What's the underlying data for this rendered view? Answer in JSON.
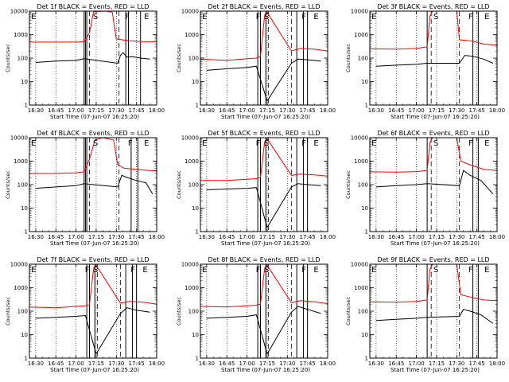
{
  "figure": {
    "x_tick_labels": [
      "16:30",
      "16:45",
      "17:00",
      "17:15",
      "17:30",
      "17:45",
      "18:00"
    ],
    "xlabel": "Start Time (07-Jun-07 16:25:20)",
    "ylabel": "Counts/sec",
    "y_tick_labels": [
      "1",
      "10",
      "100",
      "1000",
      "10000"
    ],
    "colors": {
      "events": "#000000",
      "lld": "#ff0000",
      "axes": "#000000"
    }
  },
  "chart_data": [
    {
      "type": "line",
      "title": "Det 1f BLACK = Events, RED = LLD",
      "x_time_range": [
        "16:25:20",
        "18:00"
      ],
      "ylim": [
        1,
        10000
      ],
      "y_scale": "log",
      "region_labels": [
        {
          "text": "E",
          "time": "16:26"
        },
        {
          "text": "S",
          "time": "17:12"
        },
        {
          "text": "F",
          "time": "17:36"
        },
        {
          "text": "E",
          "time": "17:50"
        }
      ],
      "solid_markers": [
        "17:06",
        "17:07",
        "17:08",
        "17:37",
        "17:39",
        "17:48"
      ],
      "dashed_markers": [
        "17:10",
        "17:32"
      ],
      "dotted_markers": [
        "16:30",
        "16:45",
        "17:00",
        "17:15",
        "17:30",
        "17:45"
      ],
      "series": [
        {
          "color": "#ff0000",
          "times": [
            "16:25:20",
            "16:45",
            "17:00",
            "17:06",
            "17:10",
            "17:13",
            "17:18",
            "17:22",
            "17:27",
            "17:30",
            "17:40",
            "17:50",
            "18:00"
          ],
          "values": [
            480,
            480,
            480,
            500,
            1200,
            9500,
            9800,
            10000,
            9000,
            650,
            550,
            500,
            500
          ]
        },
        {
          "color": "#000000",
          "times": [
            "16:30",
            "16:45",
            "17:00",
            "17:06",
            "17:31",
            "17:33",
            "17:35",
            "17:38",
            "17:42",
            "17:48",
            "17:55"
          ],
          "values": [
            65,
            75,
            80,
            95,
            60,
            130,
            170,
            110,
            115,
            100,
            90
          ]
        }
      ]
    },
    {
      "type": "line",
      "title": "Det 2f BLACK = Events, RED = LLD",
      "x_time_range": [
        "16:25:20",
        "18:00"
      ],
      "ylim": [
        1,
        10000
      ],
      "y_scale": "log",
      "region_labels": [
        {
          "text": "E",
          "time": "16:26"
        },
        {
          "text": "F",
          "time": "17:06"
        },
        {
          "text": "S",
          "time": "17:12"
        },
        {
          "text": "F",
          "time": "17:40"
        },
        {
          "text": "E",
          "time": "17:49"
        }
      ],
      "solid_markers": [
        "17:08",
        "17:10",
        "17:14",
        "17:37",
        "17:42",
        "17:45"
      ],
      "dashed_markers": [
        "17:16",
        "17:33"
      ],
      "dotted_markers": [
        "16:30",
        "16:45",
        "17:00",
        "17:15",
        "17:30",
        "17:45"
      ],
      "series": [
        {
          "color": "#ff0000",
          "times": [
            "16:25:20",
            "16:45",
            "17:00",
            "17:07",
            "17:10",
            "17:13",
            "17:15",
            "17:33",
            "17:40",
            "17:50",
            "18:00"
          ],
          "values": [
            90,
            80,
            95,
            100,
            120,
            6000,
            9000,
            200,
            260,
            240,
            200
          ]
        },
        {
          "color": "#000000",
          "times": [
            "16:30",
            "16:45",
            "17:00",
            "17:07",
            "17:15",
            "17:33",
            "17:38",
            "17:45",
            "17:55"
          ],
          "values": [
            30,
            35,
            40,
            45,
            1.5,
            60,
            90,
            85,
            75
          ]
        }
      ]
    },
    {
      "type": "line",
      "title": "Det 3f BLACK = Events, RED = LLD",
      "x_time_range": [
        "16:25:20",
        "18:00"
      ],
      "ylim": [
        1,
        10000
      ],
      "y_scale": "log",
      "region_labels": [
        {
          "text": "E",
          "time": "16:26"
        },
        {
          "text": "S",
          "time": "17:12"
        },
        {
          "text": "F",
          "time": "17:38"
        },
        {
          "text": "E",
          "time": "17:50"
        }
      ],
      "solid_markers": [
        "17:08",
        "17:42",
        "17:46"
      ],
      "dashed_markers": [
        "17:11",
        "17:32"
      ],
      "dotted_markers": [
        "16:30",
        "16:45",
        "17:00",
        "17:15",
        "17:30",
        "17:45"
      ],
      "series": [
        {
          "color": "#ff0000",
          "times": [
            "16:25:20",
            "16:45",
            "17:00",
            "17:08",
            "17:10",
            "17:12",
            "17:30",
            "17:32",
            "17:40",
            "17:50",
            "18:00"
          ],
          "values": [
            250,
            240,
            260,
            300,
            6000,
            10000,
            10000,
            600,
            550,
            400,
            350
          ]
        },
        {
          "color": "#000000",
          "times": [
            "16:30",
            "16:45",
            "17:00",
            "17:08",
            "17:32",
            "17:36",
            "17:42",
            "17:50",
            "17:57"
          ],
          "values": [
            45,
            50,
            55,
            60,
            60,
            130,
            120,
            90,
            60
          ]
        }
      ]
    },
    {
      "type": "line",
      "title": "Det 4f BLACK = Events, RED = LLD",
      "x_time_range": [
        "16:25:20",
        "18:00"
      ],
      "ylim": [
        1,
        10000
      ],
      "y_scale": "log",
      "region_labels": [
        {
          "text": "E",
          "time": "16:26"
        },
        {
          "text": "S",
          "time": "17:12"
        },
        {
          "text": "F",
          "time": "17:38"
        },
        {
          "text": "E",
          "time": "17:50"
        }
      ],
      "solid_markers": [
        "17:06",
        "17:07",
        "17:08",
        "17:41",
        "17:46"
      ],
      "dashed_markers": [
        "17:10",
        "17:32"
      ],
      "dotted_markers": [
        "16:30",
        "16:45",
        "17:00",
        "17:15",
        "17:30",
        "17:45"
      ],
      "series": [
        {
          "color": "#ff0000",
          "times": [
            "16:25:20",
            "16:45",
            "17:00",
            "17:06",
            "17:10",
            "17:14",
            "17:20",
            "17:28",
            "17:31",
            "17:36",
            "17:50",
            "18:00"
          ],
          "values": [
            300,
            300,
            320,
            350,
            1200,
            8000,
            10000,
            8000,
            700,
            500,
            420,
            380
          ]
        },
        {
          "color": "#000000",
          "times": [
            "16:30",
            "16:45",
            "17:00",
            "17:06",
            "17:31",
            "17:34",
            "17:38",
            "17:45",
            "17:52",
            "17:57"
          ],
          "values": [
            70,
            80,
            90,
            110,
            80,
            250,
            200,
            150,
            120,
            40
          ]
        }
      ]
    },
    {
      "type": "line",
      "title": "Det 5f BLACK = Events, RED = LLD",
      "x_time_range": [
        "16:25:20",
        "18:00"
      ],
      "ylim": [
        1,
        10000
      ],
      "y_scale": "log",
      "region_labels": [
        {
          "text": "E",
          "time": "16:26"
        },
        {
          "text": "F",
          "time": "17:06"
        },
        {
          "text": "S",
          "time": "17:12"
        },
        {
          "text": "F",
          "time": "17:40"
        },
        {
          "text": "E",
          "time": "17:49"
        }
      ],
      "solid_markers": [
        "17:08",
        "17:10",
        "17:14",
        "17:37",
        "17:42",
        "17:45"
      ],
      "dashed_markers": [
        "17:16",
        "17:33"
      ],
      "dotted_markers": [
        "16:30",
        "16:45",
        "17:00",
        "17:15",
        "17:30",
        "17:45"
      ],
      "series": [
        {
          "color": "#ff0000",
          "times": [
            "16:25:20",
            "16:45",
            "17:00",
            "17:07",
            "17:10",
            "17:13",
            "17:15",
            "17:33",
            "17:40",
            "17:50",
            "18:00"
          ],
          "values": [
            150,
            150,
            170,
            180,
            200,
            6000,
            9000,
            250,
            280,
            260,
            230
          ]
        },
        {
          "color": "#000000",
          "times": [
            "16:30",
            "16:45",
            "17:00",
            "17:07",
            "17:15",
            "17:33",
            "17:38",
            "17:45",
            "17:55"
          ],
          "values": [
            60,
            65,
            70,
            75,
            1.5,
            80,
            110,
            100,
            90
          ]
        }
      ]
    },
    {
      "type": "line",
      "title": "Det 6f BLACK = Events, RED = LLD",
      "x_time_range": [
        "16:25:20",
        "18:00"
      ],
      "ylim": [
        1,
        10000
      ],
      "y_scale": "log",
      "region_labels": [
        {
          "text": "E",
          "time": "16:26"
        },
        {
          "text": "S",
          "time": "17:12"
        },
        {
          "text": "F",
          "time": "17:38"
        },
        {
          "text": "E",
          "time": "17:50"
        }
      ],
      "solid_markers": [
        "17:08",
        "17:42",
        "17:46"
      ],
      "dashed_markers": [
        "17:11",
        "17:32"
      ],
      "dotted_markers": [
        "16:30",
        "16:45",
        "17:00",
        "17:15",
        "17:30",
        "17:45"
      ],
      "series": [
        {
          "color": "#ff0000",
          "times": [
            "16:25:20",
            "16:45",
            "17:00",
            "17:08",
            "17:10",
            "17:12",
            "17:30",
            "17:33",
            "17:40",
            "17:50",
            "18:00"
          ],
          "values": [
            350,
            340,
            360,
            400,
            6000,
            10000,
            10000,
            1000,
            700,
            450,
            400
          ]
        },
        {
          "color": "#000000",
          "times": [
            "16:30",
            "16:45",
            "17:00",
            "17:08",
            "17:32",
            "17:35",
            "17:40",
            "17:48",
            "17:57"
          ],
          "values": [
            80,
            90,
            100,
            110,
            90,
            400,
            250,
            150,
            40
          ]
        }
      ]
    },
    {
      "type": "line",
      "title": "Det 7f BLACK = Events, RED = LLD",
      "x_time_range": [
        "16:25:20",
        "18:00"
      ],
      "ylim": [
        1,
        10000
      ],
      "y_scale": "log",
      "region_labels": [
        {
          "text": "E",
          "time": "16:26"
        },
        {
          "text": "F",
          "time": "17:06"
        },
        {
          "text": "S",
          "time": "17:12"
        },
        {
          "text": "F",
          "time": "17:40"
        },
        {
          "text": "E",
          "time": "17:49"
        }
      ],
      "solid_markers": [
        "17:08",
        "17:10",
        "17:14",
        "17:37",
        "17:42",
        "17:45"
      ],
      "dashed_markers": [
        "17:16",
        "17:33"
      ],
      "dotted_markers": [
        "16:30",
        "16:45",
        "17:00",
        "17:15",
        "17:30",
        "17:45"
      ],
      "series": [
        {
          "color": "#ff0000",
          "times": [
            "16:25:20",
            "16:45",
            "17:00",
            "17:07",
            "17:10",
            "17:13",
            "17:15",
            "17:33",
            "17:40",
            "17:50",
            "18:00"
          ],
          "values": [
            150,
            140,
            160,
            170,
            190,
            6000,
            9000,
            220,
            260,
            240,
            200
          ]
        },
        {
          "color": "#000000",
          "times": [
            "16:30",
            "16:45",
            "17:00",
            "17:07",
            "17:15",
            "17:33",
            "17:38",
            "17:45",
            "17:55"
          ],
          "values": [
            50,
            55,
            60,
            65,
            1.5,
            80,
            140,
            110,
            90
          ]
        }
      ]
    },
    {
      "type": "line",
      "title": "Det 8f BLACK = Events, RED = LLD",
      "x_time_range": [
        "16:25:20",
        "18:00"
      ],
      "ylim": [
        1,
        10000
      ],
      "y_scale": "log",
      "region_labels": [
        {
          "text": "E",
          "time": "16:26"
        },
        {
          "text": "F",
          "time": "17:06"
        },
        {
          "text": "S",
          "time": "17:12"
        },
        {
          "text": "F",
          "time": "17:40"
        },
        {
          "text": "E",
          "time": "17:49"
        }
      ],
      "solid_markers": [
        "17:08",
        "17:10",
        "17:14",
        "17:37",
        "17:42",
        "17:45"
      ],
      "dashed_markers": [
        "17:16",
        "17:33"
      ],
      "dotted_markers": [
        "16:30",
        "16:45",
        "17:00",
        "17:15",
        "17:30",
        "17:45"
      ],
      "series": [
        {
          "color": "#ff0000",
          "times": [
            "16:25:20",
            "16:45",
            "17:00",
            "17:07",
            "17:10",
            "17:13",
            "17:15",
            "17:33",
            "17:40",
            "17:50",
            "18:00"
          ],
          "values": [
            160,
            150,
            170,
            180,
            200,
            6000,
            9000,
            230,
            280,
            250,
            210
          ]
        },
        {
          "color": "#000000",
          "times": [
            "16:30",
            "16:45",
            "17:00",
            "17:07",
            "17:15",
            "17:33",
            "17:38",
            "17:45",
            "17:55"
          ],
          "values": [
            50,
            55,
            60,
            70,
            1.5,
            90,
            160,
            120,
            80
          ]
        }
      ]
    },
    {
      "type": "line",
      "title": "Det 9f BLACK = Events, RED = LLD",
      "x_time_range": [
        "16:25:20",
        "18:00"
      ],
      "ylim": [
        1,
        10000
      ],
      "y_scale": "log",
      "region_labels": [
        {
          "text": "E",
          "time": "16:26"
        },
        {
          "text": "S",
          "time": "17:12"
        },
        {
          "text": "F",
          "time": "17:38"
        },
        {
          "text": "E",
          "time": "17:50"
        }
      ],
      "solid_markers": [
        "17:08",
        "17:42",
        "17:46"
      ],
      "dashed_markers": [
        "17:11",
        "17:32"
      ],
      "dotted_markers": [
        "16:30",
        "16:45",
        "17:00",
        "17:15",
        "17:30",
        "17:45"
      ],
      "series": [
        {
          "color": "#ff0000",
          "times": [
            "16:25:20",
            "16:45",
            "17:00",
            "17:08",
            "17:10",
            "17:12",
            "17:30",
            "17:33",
            "17:40",
            "17:50",
            "18:00"
          ],
          "values": [
            250,
            240,
            260,
            300,
            6000,
            10000,
            10000,
            500,
            400,
            300,
            280
          ]
        },
        {
          "color": "#000000",
          "times": [
            "16:30",
            "16:45",
            "17:00",
            "17:08",
            "17:32",
            "17:35",
            "17:40",
            "17:48",
            "17:57"
          ],
          "values": [
            40,
            45,
            50,
            55,
            60,
            120,
            100,
            70,
            30
          ]
        }
      ]
    }
  ]
}
